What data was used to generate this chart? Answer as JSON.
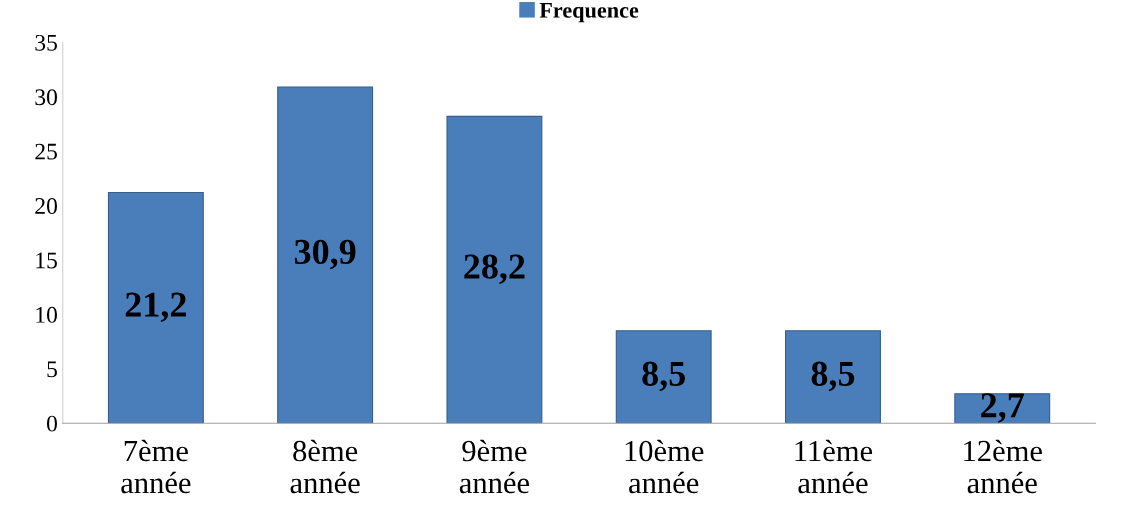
{
  "chart_data": {
    "type": "bar",
    "categories": [
      "7ème\nannée",
      "8ème\nannée",
      "9ème\nannée",
      "10ème\nannée",
      "11ème\nannée",
      "12ème\nannée"
    ],
    "series": [
      {
        "name": "Frequence",
        "color": "#4a7ebb",
        "values": [
          21.2,
          30.9,
          28.2,
          8.5,
          8.5,
          2.7
        ],
        "value_labels": [
          "21,2",
          "30,9",
          "28,2",
          "8,5",
          "8,5",
          "2,7"
        ]
      }
    ],
    "ylim": [
      0,
      35
    ],
    "yticks": [
      0,
      5,
      10,
      15,
      20,
      25,
      30,
      35
    ],
    "grid": false,
    "legend": "top"
  }
}
